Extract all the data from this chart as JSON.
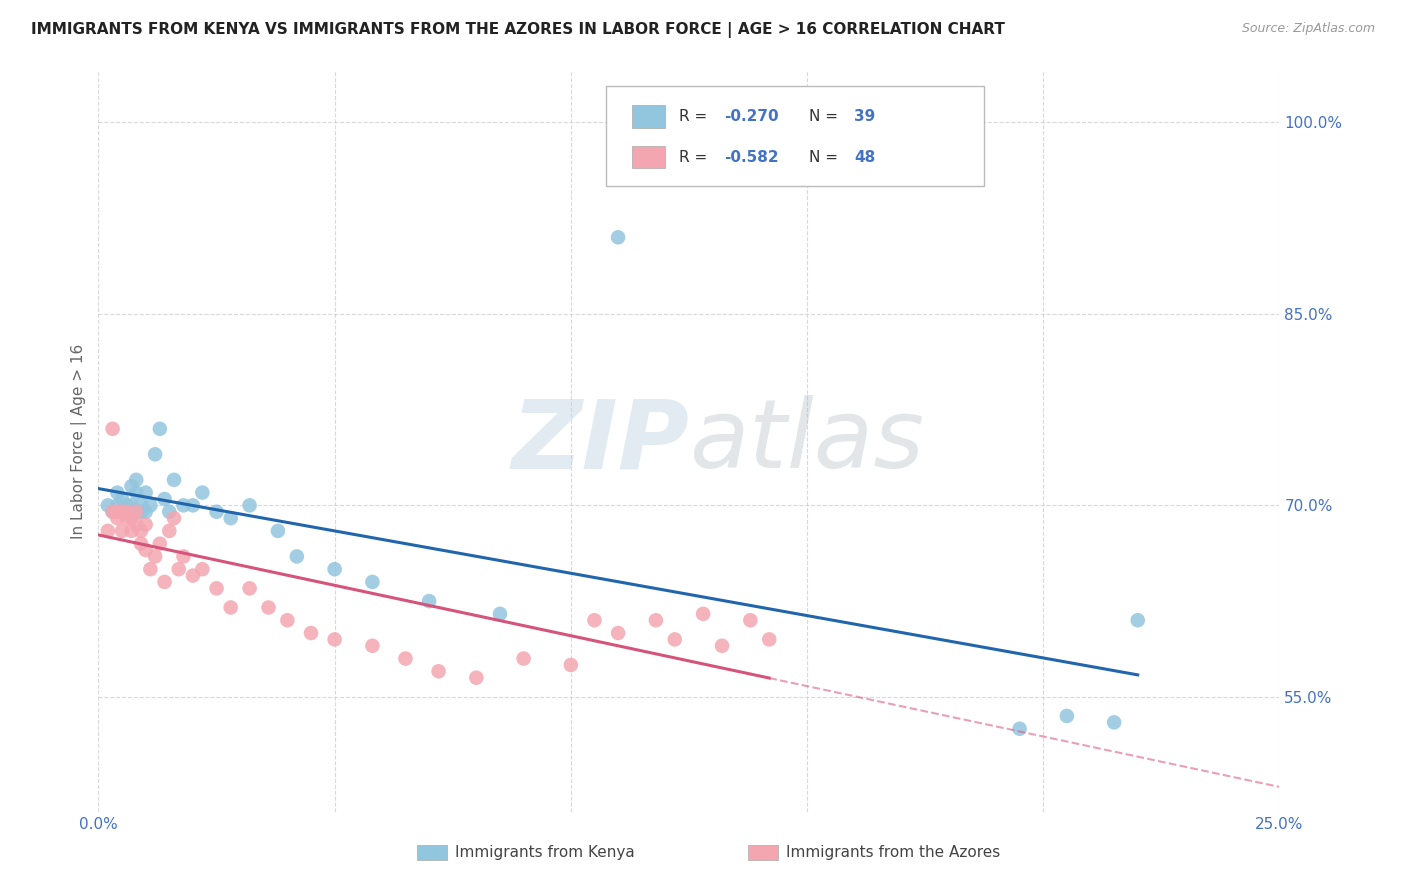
{
  "title": "IMMIGRANTS FROM KENYA VS IMMIGRANTS FROM THE AZORES IN LABOR FORCE | AGE > 16 CORRELATION CHART",
  "source": "Source: ZipAtlas.com",
  "ylabel": "In Labor Force | Age > 16",
  "xlim": [
    0.0,
    0.25
  ],
  "ylim": [
    0.46,
    1.04
  ],
  "xtick_positions": [
    0.0,
    0.05,
    0.1,
    0.15,
    0.2,
    0.25
  ],
  "xticklabels": [
    "0.0%",
    "",
    "",
    "",
    "",
    "25.0%"
  ],
  "ytick_positions": [
    0.55,
    0.7,
    0.85,
    1.0
  ],
  "yticklabels": [
    "55.0%",
    "70.0%",
    "85.0%",
    "100.0%"
  ],
  "kenya_R": -0.27,
  "kenya_N": 39,
  "azores_R": -0.582,
  "azores_N": 48,
  "kenya_color": "#92c5de",
  "azores_color": "#f4a6b0",
  "kenya_line_color": "#2166ac",
  "azores_line_color": "#d6537a",
  "kenya_scatter_x": [
    0.002,
    0.003,
    0.004,
    0.004,
    0.005,
    0.005,
    0.006,
    0.006,
    0.007,
    0.007,
    0.008,
    0.008,
    0.009,
    0.009,
    0.01,
    0.01,
    0.011,
    0.012,
    0.013,
    0.014,
    0.015,
    0.016,
    0.018,
    0.02,
    0.022,
    0.025,
    0.028,
    0.032,
    0.038,
    0.042,
    0.05,
    0.058,
    0.07,
    0.085,
    0.11,
    0.195,
    0.205,
    0.215,
    0.22
  ],
  "kenya_scatter_y": [
    0.7,
    0.695,
    0.71,
    0.7,
    0.695,
    0.705,
    0.7,
    0.695,
    0.715,
    0.7,
    0.71,
    0.72,
    0.695,
    0.7,
    0.71,
    0.695,
    0.7,
    0.74,
    0.76,
    0.705,
    0.695,
    0.72,
    0.7,
    0.7,
    0.71,
    0.695,
    0.69,
    0.7,
    0.68,
    0.66,
    0.65,
    0.64,
    0.625,
    0.615,
    0.91,
    0.525,
    0.535,
    0.53,
    0.61
  ],
  "azores_scatter_x": [
    0.002,
    0.003,
    0.003,
    0.004,
    0.004,
    0.005,
    0.005,
    0.006,
    0.006,
    0.007,
    0.007,
    0.008,
    0.008,
    0.009,
    0.009,
    0.01,
    0.01,
    0.011,
    0.012,
    0.013,
    0.014,
    0.015,
    0.016,
    0.017,
    0.018,
    0.02,
    0.022,
    0.025,
    0.028,
    0.032,
    0.036,
    0.04,
    0.045,
    0.05,
    0.058,
    0.065,
    0.072,
    0.08,
    0.09,
    0.1,
    0.105,
    0.11,
    0.118,
    0.122,
    0.128,
    0.132,
    0.138,
    0.142
  ],
  "azores_scatter_y": [
    0.68,
    0.76,
    0.695,
    0.69,
    0.695,
    0.68,
    0.695,
    0.69,
    0.695,
    0.68,
    0.69,
    0.685,
    0.695,
    0.67,
    0.68,
    0.665,
    0.685,
    0.65,
    0.66,
    0.67,
    0.64,
    0.68,
    0.69,
    0.65,
    0.66,
    0.645,
    0.65,
    0.635,
    0.62,
    0.635,
    0.62,
    0.61,
    0.6,
    0.595,
    0.59,
    0.58,
    0.57,
    0.565,
    0.58,
    0.575,
    0.61,
    0.6,
    0.61,
    0.595,
    0.615,
    0.59,
    0.61,
    0.595
  ]
}
